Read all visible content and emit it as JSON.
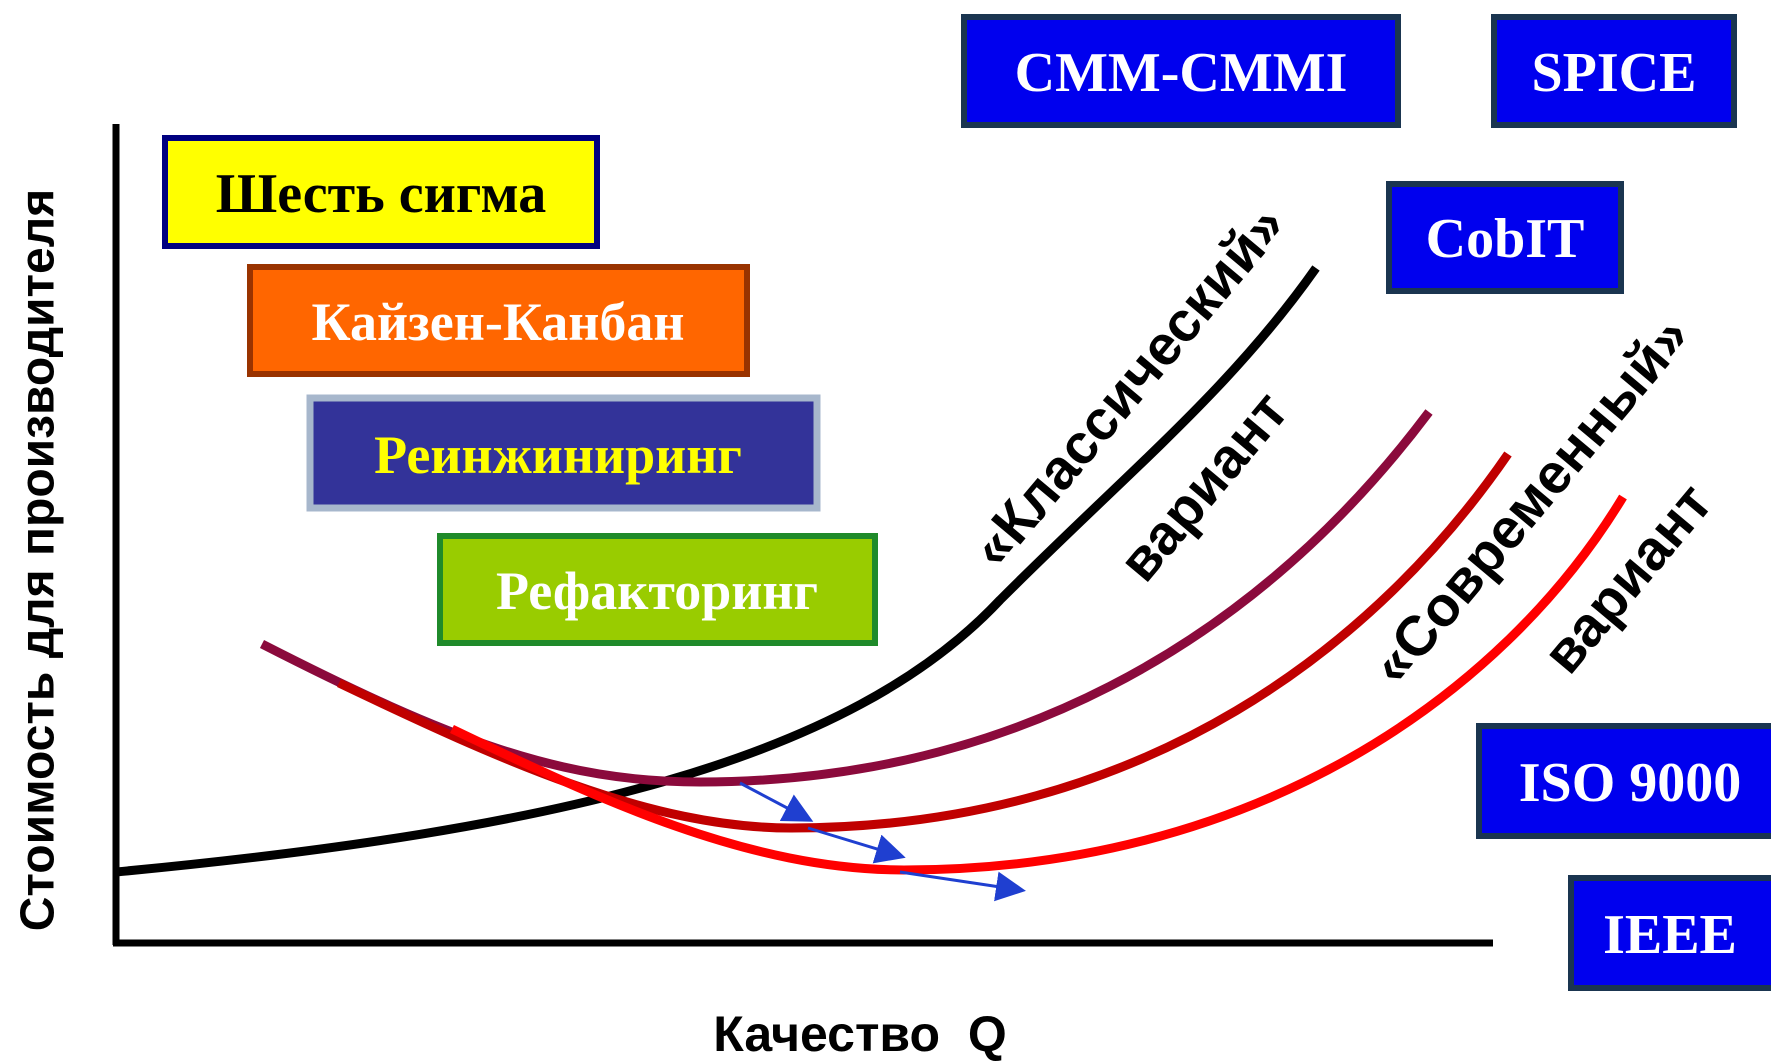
{
  "y_axis_label": "Стоимость для производителя",
  "x_axis_label": "Качество  Q",
  "methods": [
    "Шесть сигма",
    "Кайзен-Канбан",
    "Реинжиниринг",
    "Рефакторинг"
  ],
  "standards": [
    "CMM-CMMI",
    "SPICE",
    "CobIT",
    "ISO 9000",
    "IEEE"
  ],
  "curve_labels": {
    "classic": "«Классический»",
    "classic_variant": "вариант",
    "modern": "«Современный»",
    "modern_variant": "вариант"
  }
}
